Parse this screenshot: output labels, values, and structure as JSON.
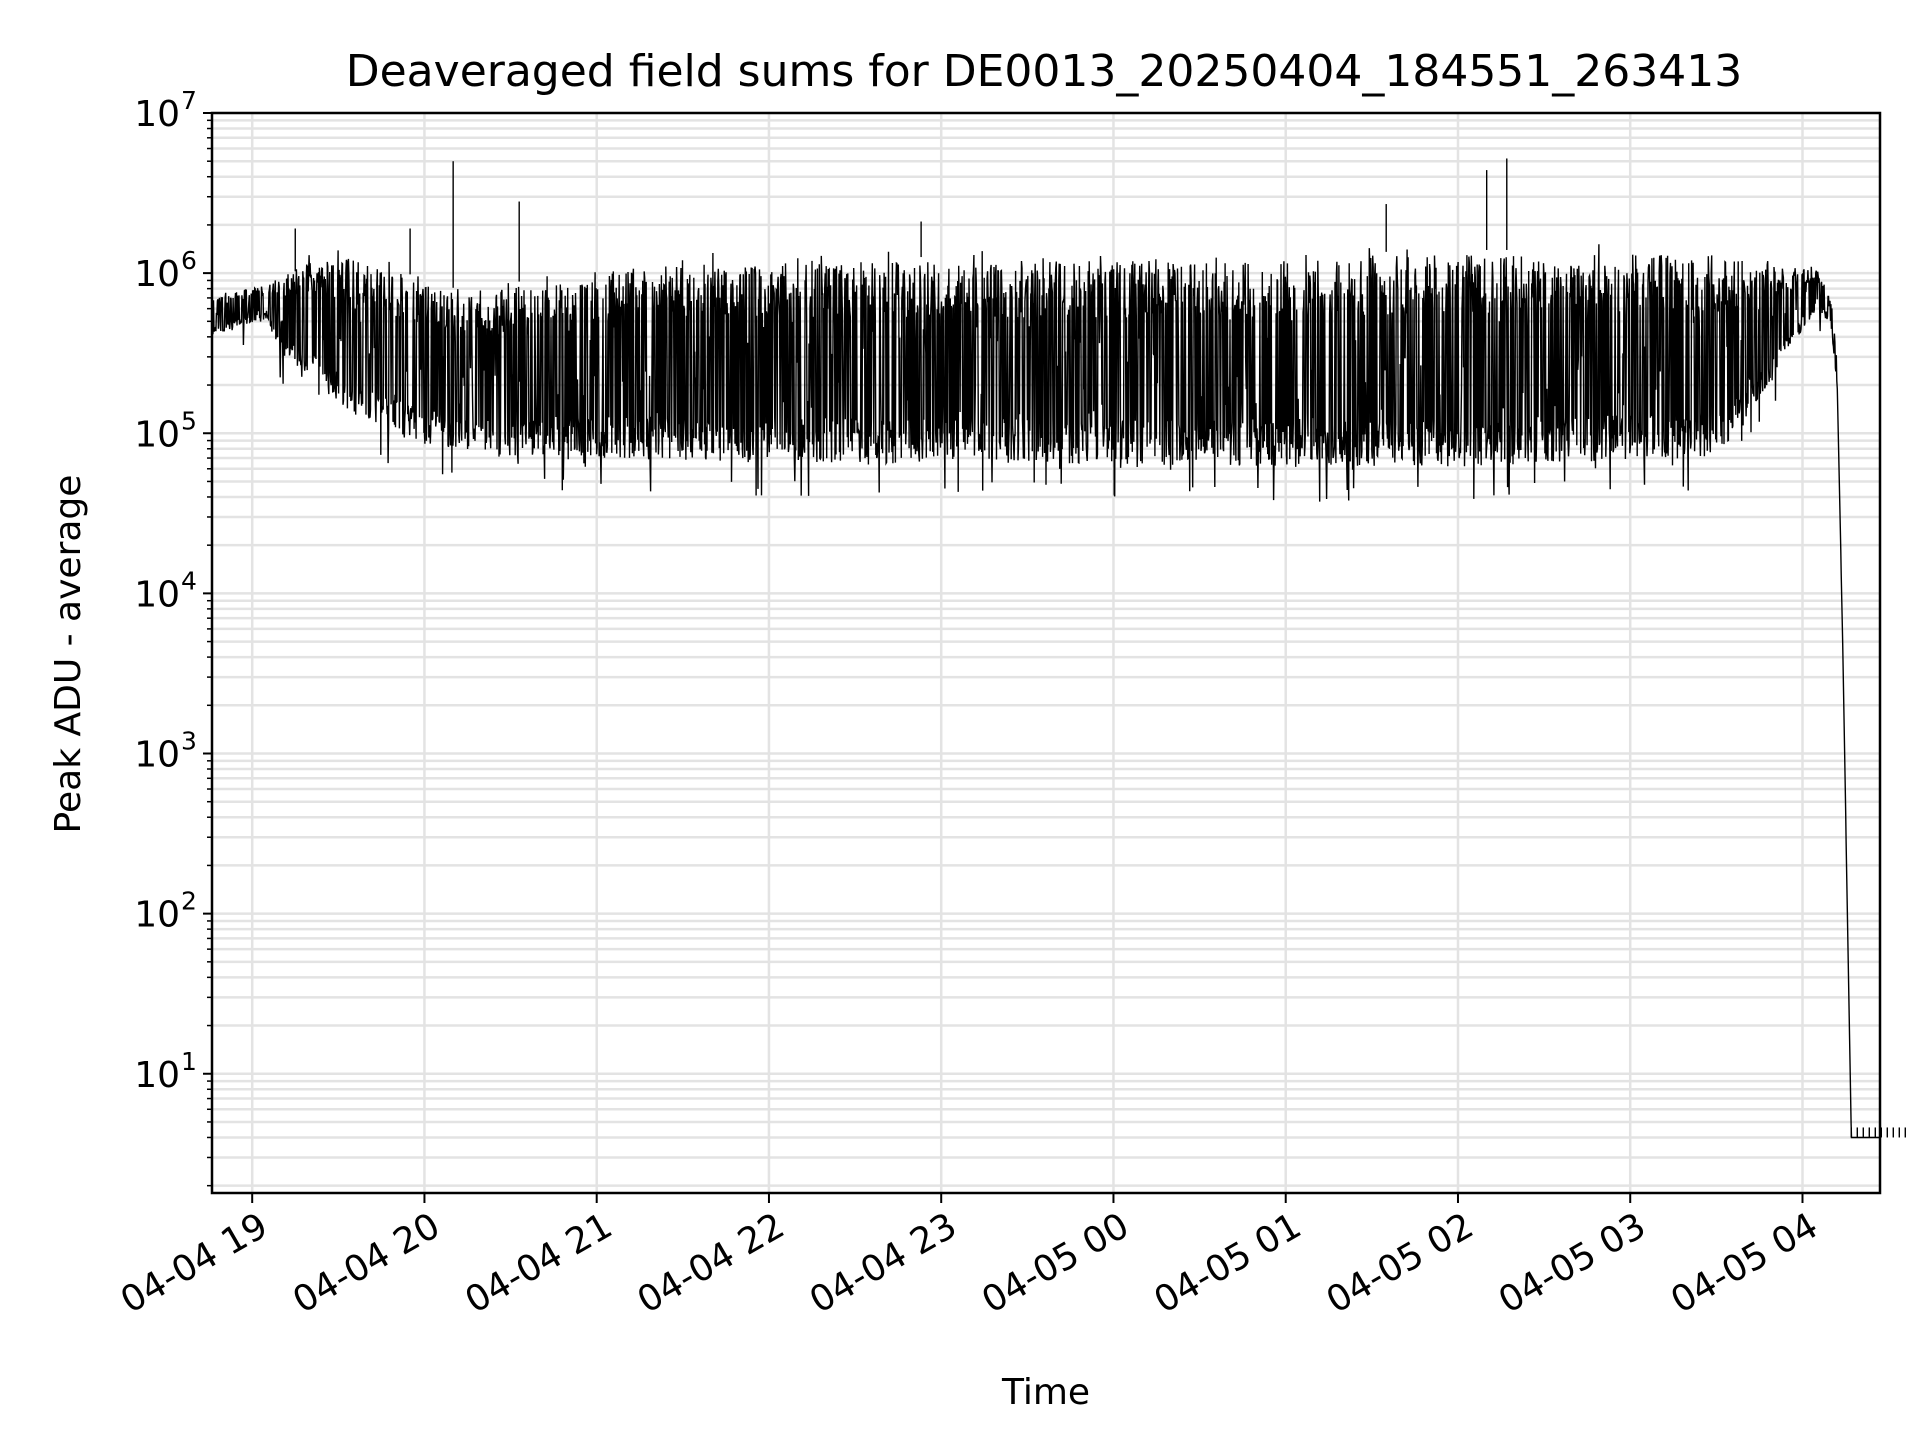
{
  "chart_data": {
    "type": "line",
    "title": "Deaveraged field sums for DE0013_20250404_184551_263413",
    "xlabel": "Time",
    "ylabel": "Peak ADU - average",
    "yscale": "log",
    "ylim": [
      1.8,
      10000000
    ],
    "xlim": [
      "2025-04-04 18:46",
      "2025-04-05 04:27"
    ],
    "grid": true,
    "x_tick_labels": [
      "04-04 19",
      "04-04 20",
      "04-04 21",
      "04-04 22",
      "04-04 23",
      "04-05 00",
      "04-05 01",
      "04-05 02",
      "04-05 03",
      "04-05 04"
    ],
    "x_tick_times": [
      "2025-04-04 19:00",
      "2025-04-04 20:00",
      "2025-04-04 21:00",
      "2025-04-04 22:00",
      "2025-04-04 23:00",
      "2025-04-05 00:00",
      "2025-04-05 01:00",
      "2025-04-05 02:00",
      "2025-04-05 03:00",
      "2025-04-05 04:00"
    ],
    "y_ticks": [
      {
        "value": 10,
        "base": "10",
        "exp": "1"
      },
      {
        "value": 100,
        "base": "10",
        "exp": "2"
      },
      {
        "value": 1000,
        "base": "10",
        "exp": "3"
      },
      {
        "value": 10000,
        "base": "10",
        "exp": "4"
      },
      {
        "value": 100000,
        "base": "10",
        "exp": "5"
      },
      {
        "value": 1000000,
        "base": "10",
        "exp": "6"
      },
      {
        "value": 10000000,
        "base": "10",
        "exp": "7"
      }
    ],
    "series": [
      {
        "color": "#000000",
        "x": [
          "2025-04-04 18:46",
          "2025-04-04 18:55",
          "2025-04-04 19:05",
          "2025-04-04 19:10",
          "2025-04-04 19:20",
          "2025-04-04 19:30",
          "2025-04-04 19:45",
          "2025-04-04 20:00",
          "2025-04-04 20:10",
          "2025-04-04 20:20",
          "2025-04-04 20:40",
          "2025-04-04 21:00",
          "2025-04-04 21:30",
          "2025-04-04 22:00",
          "2025-04-04 22:30",
          "2025-04-04 23:00",
          "2025-04-04 23:30",
          "2025-04-05 00:00",
          "2025-04-05 00:30",
          "2025-04-05 01:00",
          "2025-04-05 01:30",
          "2025-04-05 02:00",
          "2025-04-05 02:30",
          "2025-04-05 03:00",
          "2025-04-05 03:30",
          "2025-04-05 03:50",
          "2025-04-05 04:05",
          "2025-04-05 04:10",
          "2025-04-05 04:12",
          "2025-04-05 04:14",
          "2025-04-05 04:17",
          "2025-04-05 04:18",
          "2025-04-05 04:27"
        ],
        "low": [
          400000,
          450000,
          500000,
          300000,
          200000,
          130000,
          90000,
          75000,
          70000,
          65000,
          62000,
          60000,
          58000,
          57000,
          55000,
          55000,
          55000,
          55000,
          53000,
          52000,
          52000,
          52000,
          55000,
          58000,
          60000,
          200000,
          600000,
          450000,
          200000,
          5000,
          4,
          4,
          4
        ],
        "high": [
          750000,
          800000,
          850000,
          1000000,
          1300000,
          1400000,
          1300000,
          1000000,
          900000,
          800000,
          1100000,
          1200000,
          1350000,
          1400000,
          1400000,
          1400000,
          1400000,
          1400000,
          1400000,
          1450000,
          1500000,
          1550000,
          1550000,
          1550000,
          1500000,
          1200000,
          1100000,
          700000,
          300000,
          5000,
          4,
          4,
          4
        ],
        "spikes": [
          {
            "x": "2025-04-04 20:10",
            "y": 5000000
          },
          {
            "x": "2025-04-04 20:33",
            "y": 2800000
          },
          {
            "x": "2025-04-04 19:55",
            "y": 1900000
          },
          {
            "x": "2025-04-04 19:15",
            "y": 1900000
          },
          {
            "x": "2025-04-04 22:53",
            "y": 2100000
          },
          {
            "x": "2025-04-05 01:35",
            "y": 2700000
          },
          {
            "x": "2025-04-05 02:10",
            "y": 4400000
          },
          {
            "x": "2025-04-05 02:17",
            "y": 5200000
          }
        ]
      }
    ]
  }
}
